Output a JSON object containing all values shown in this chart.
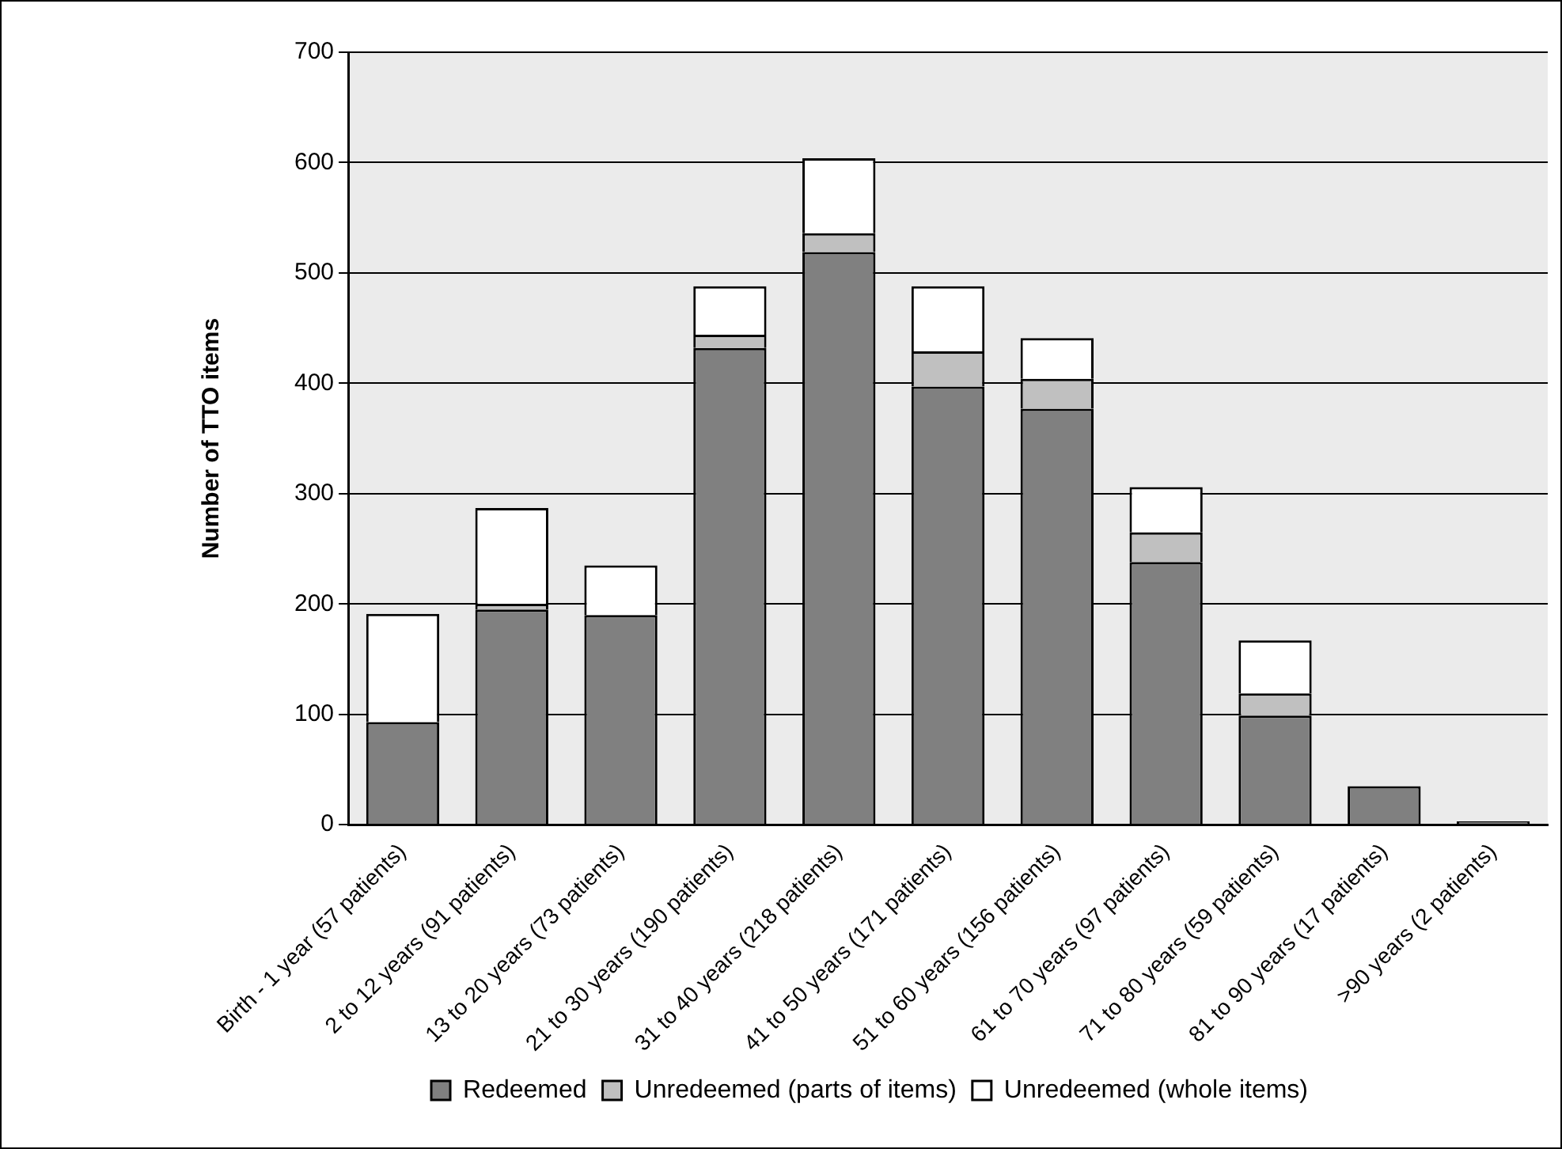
{
  "chart_data": {
    "type": "bar",
    "stacked": true,
    "ylabel": "Number of TTO items",
    "categories": [
      "Birth - 1 year (57 patients)",
      "2 to 12 years (91 patients)",
      "13 to 20 years (73 patients)",
      "21 to 30 years (190 patients)",
      "31 to 40 years (218 patients)",
      "41 to 50 years (171 patients)",
      "51 to 60 years (156 patients)",
      "61 to 70 years (97 patients)",
      "71 to 80 years (59 patients)",
      "81 to 90 years (17 patients)",
      ">90 years (2 patients)"
    ],
    "series": [
      {
        "name": "Redeemed",
        "color": "#808080",
        "values": [
          93,
          195,
          190,
          432,
          519,
          397,
          377,
          238,
          99,
          35,
          3
        ]
      },
      {
        "name": "Unredeemed (parts of items)",
        "color": "#c0c0c0",
        "values": [
          null,
          5,
          null,
          12,
          17,
          32,
          27,
          27,
          20,
          null,
          null
        ]
      },
      {
        "name": "Unredeemed (whole items)",
        "color": "#ffffff",
        "values": [
          98,
          87,
          45,
          44,
          68,
          59,
          37,
          41,
          48,
          null,
          null
        ]
      }
    ],
    "ylim": [
      0,
      700
    ],
    "yticks": [
      0,
      100,
      200,
      300,
      400,
      500,
      600,
      700
    ],
    "grid": "y",
    "legend": "bottom"
  }
}
